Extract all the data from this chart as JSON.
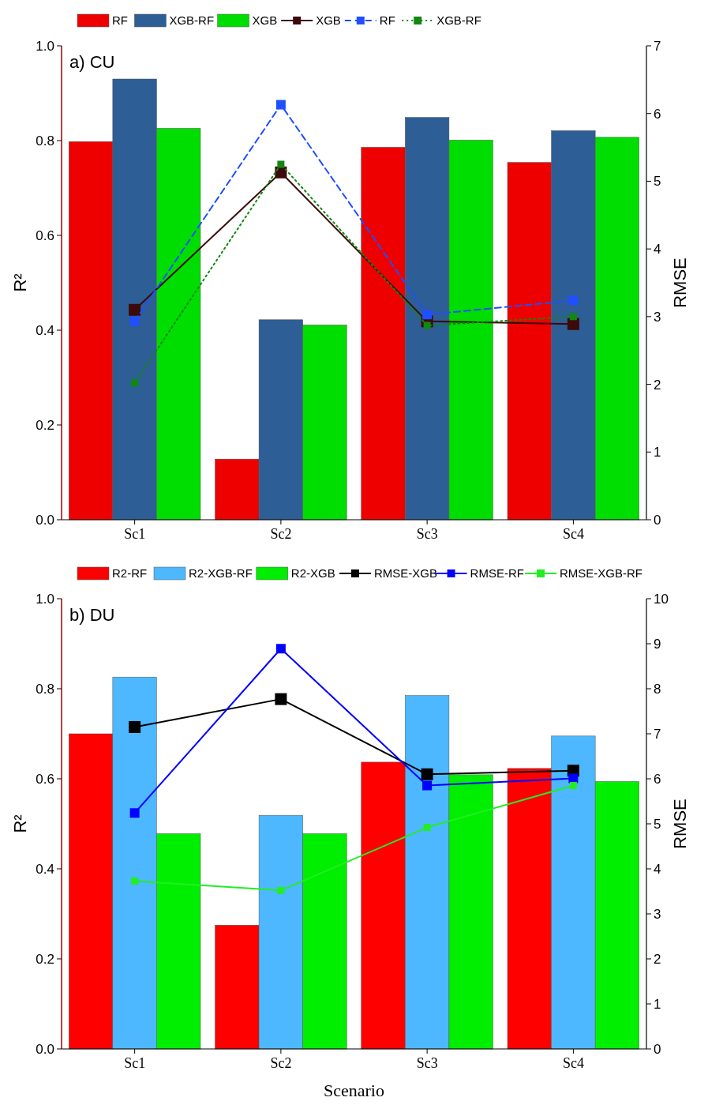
{
  "chart_data": [
    {
      "type": "bar",
      "annotations": [
        "a) CU"
      ],
      "ylabel": "R²",
      "y2label": "RMSE",
      "categories": [
        "Sc1",
        "Sc2",
        "Sc3",
        "Sc4"
      ],
      "ylim": [
        0,
        1
      ],
      "yticks": [
        {
          "value": 0,
          "label": "0.0"
        },
        {
          "value": 0.2,
          "label": "0.2"
        },
        {
          "value": 0.4,
          "label": "0.4"
        },
        {
          "value": 0.6,
          "label": "0.6"
        },
        {
          "value": 0.8,
          "label": "0.8"
        },
        {
          "value": 1,
          "label": "1.0"
        }
      ],
      "y2lim": [
        0,
        7
      ],
      "y2ticks": [
        0,
        1,
        2,
        3,
        4,
        5,
        6,
        7
      ],
      "legend": "top",
      "marker": "square",
      "series": [
        {
          "name": "RF",
          "color": "#ee0000",
          "values": [
            0.798,
            0.128,
            0.786,
            0.754
          ]
        },
        {
          "name": "XGB-RF",
          "color": "#2e5e96",
          "values": [
            0.93,
            0.422,
            0.849,
            0.821
          ]
        },
        {
          "name": "XGB",
          "color": "#00dd00",
          "values": [
            0.826,
            0.411,
            0.801,
            0.807
          ]
        },
        {
          "name": "XGB",
          "type": "line",
          "axis": "y2",
          "line_style": "solid",
          "color": "#3b0a0a",
          "values": [
            3.1,
            5.13,
            2.93,
            2.89
          ]
        },
        {
          "name": "RF",
          "type": "line",
          "axis": "y2",
          "line_style": "dashed",
          "color": "#1f4fff",
          "values": [
            2.93,
            6.13,
            3.03,
            3.24
          ]
        },
        {
          "name": "XGB-RF",
          "type": "line",
          "axis": "y2",
          "line_style": "dotted",
          "color": "#118811",
          "values": [
            2.02,
            5.25,
            2.87,
            3.0
          ]
        }
      ]
    },
    {
      "type": "bar",
      "annotations": [
        "b) DU"
      ],
      "xlabel": "Scenario",
      "ylabel": "R²",
      "y2label": "RMSE",
      "categories": [
        "Sc1",
        "Sc2",
        "Sc3",
        "Sc4"
      ],
      "ylim": [
        0,
        1
      ],
      "yticks": [
        {
          "value": 0,
          "label": "0.0"
        },
        {
          "value": 0.2,
          "label": "0.2"
        },
        {
          "value": 0.4,
          "label": "0.4"
        },
        {
          "value": 0.6,
          "label": "0.6"
        },
        {
          "value": 0.8,
          "label": "0.8"
        },
        {
          "value": 1,
          "label": "1.0"
        }
      ],
      "y2lim": [
        0,
        10
      ],
      "y2ticks": [
        0,
        1,
        2,
        3,
        4,
        5,
        6,
        7,
        8,
        9,
        10
      ],
      "legend": "top",
      "marker": "square",
      "series": [
        {
          "name": "R2-RF",
          "color": "#ff0000",
          "values": [
            0.7,
            0.275,
            0.637,
            0.623
          ]
        },
        {
          "name": "R2-XGB-RF",
          "color": "#4db8ff",
          "values": [
            0.826,
            0.519,
            0.785,
            0.695
          ]
        },
        {
          "name": "R2-XGB",
          "color": "#00ee00",
          "values": [
            0.478,
            0.478,
            0.609,
            0.594
          ]
        },
        {
          "name": "RMSE-XGB",
          "type": "line",
          "axis": "y2",
          "line_style": "solid",
          "color": "#000000",
          "values": [
            7.15,
            7.77,
            6.1,
            6.18
          ]
        },
        {
          "name": "RMSE-RF",
          "type": "line",
          "axis": "y2",
          "line_style": "solid",
          "color": "#0000ff",
          "values": [
            5.24,
            8.89,
            5.85,
            6.01
          ]
        },
        {
          "name": "RMSE-XGB-RF",
          "type": "line",
          "axis": "y2",
          "line_style": "solid",
          "color": "#22ee22",
          "values": [
            3.73,
            3.52,
            4.92,
            5.85
          ]
        }
      ]
    }
  ]
}
